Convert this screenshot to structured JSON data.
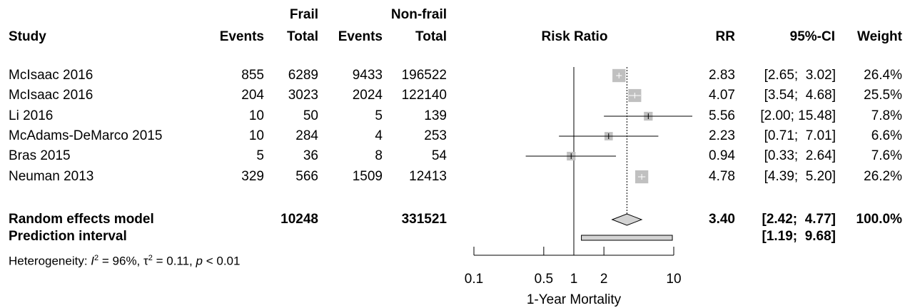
{
  "chart_data": {
    "type": "forest",
    "header": {
      "group1": "Frail",
      "group2": "Non-frail",
      "study": "Study",
      "events1": "Events",
      "total1": "Total",
      "events2": "Events",
      "total2": "Total",
      "plot_title": "Risk Ratio",
      "rr": "RR",
      "ci": "95%-CI",
      "weight": "Weight"
    },
    "studies": [
      {
        "study": "McIsaac 2016",
        "events1": "855",
        "total1": "6289",
        "events2": "9433",
        "total2": "196522",
        "rr": 2.83,
        "lo": 2.65,
        "hi": 3.02,
        "rr_text": "2.83",
        "ci_text": "[2.65;  3.02]",
        "weight_text": "26.4%",
        "weight": 26.4
      },
      {
        "study": "McIsaac 2016",
        "events1": "204",
        "total1": "3023",
        "events2": "2024",
        "total2": "122140",
        "rr": 4.07,
        "lo": 3.54,
        "hi": 4.68,
        "rr_text": "4.07",
        "ci_text": "[3.54;  4.68]",
        "weight_text": "25.5%",
        "weight": 25.5
      },
      {
        "study": "Li 2016",
        "events1": "10",
        "total1": "50",
        "events2": "5",
        "total2": "139",
        "rr": 5.56,
        "lo": 2.0,
        "hi": 15.48,
        "rr_text": "5.56",
        "ci_text": "[2.00; 15.48]",
        "weight_text": "7.8%",
        "weight": 7.8
      },
      {
        "study": "McAdams-DeMarco 2015",
        "events1": "10",
        "total1": "284",
        "events2": "4",
        "total2": "253",
        "rr": 2.23,
        "lo": 0.71,
        "hi": 7.01,
        "rr_text": "2.23",
        "ci_text": "[0.71;  7.01]",
        "weight_text": "6.6%",
        "weight": 6.6
      },
      {
        "study": "Bras 2015",
        "events1": "5",
        "total1": "36",
        "events2": "8",
        "total2": "54",
        "rr": 0.94,
        "lo": 0.33,
        "hi": 2.64,
        "rr_text": "0.94",
        "ci_text": "[0.33;  2.64]",
        "weight_text": "7.6%",
        "weight": 7.6
      },
      {
        "study": "Neuman 2013",
        "events1": "329",
        "total1": "566",
        "events2": "1509",
        "total2": "12413",
        "rr": 4.78,
        "lo": 4.39,
        "hi": 5.2,
        "rr_text": "4.78",
        "ci_text": "[4.39;  5.20]",
        "weight_text": "26.2%",
        "weight": 26.2
      }
    ],
    "summary": {
      "label": "Random effects model",
      "total1": "10248",
      "total2": "331521",
      "rr": 3.4,
      "lo": 2.42,
      "hi": 4.77,
      "rr_text": "3.40",
      "ci_text": "[2.42;  4.77]",
      "weight_text": "100.0%"
    },
    "prediction": {
      "label": "Prediction interval",
      "lo": 1.19,
      "hi": 9.68,
      "ci_text": "[1.19;  9.68]"
    },
    "heterogeneity": {
      "prefix": "Heterogeneity: ",
      "i2_sym": "I",
      "i2_text": " = 96%, ",
      "tau_sym": "τ",
      "tau_text": " = 0.11, ",
      "p_sym": "p",
      "p_text": " < 0.01"
    },
    "xaxis": {
      "scale": "log",
      "range": [
        0.1,
        10
      ],
      "ticks": [
        0.1,
        0.5,
        1,
        2,
        10
      ],
      "tick_labels": [
        "0.1",
        "0.5",
        "1",
        "2",
        "10"
      ],
      "label": "1-Year Mortality",
      "reference_line": 1
    },
    "colors": {
      "box": "#c0c0c0",
      "diamond": "#d3d3d3",
      "line": "#000000"
    }
  }
}
